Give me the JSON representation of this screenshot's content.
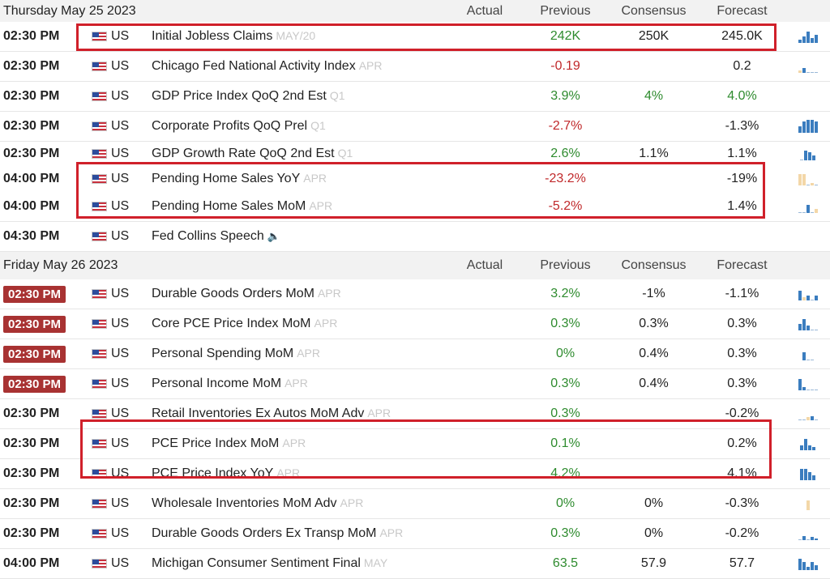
{
  "columns": {
    "actual": "Actual",
    "previous": "Previous",
    "consensus": "Consensus",
    "forecast": "Forecast"
  },
  "colors": {
    "highlight": "#d0202a",
    "positive": "#2e8b2e",
    "negative": "#c0282a",
    "badge": "#a83232",
    "spark": "#3b7dbf"
  },
  "days": [
    {
      "label": "Thursday May 25 2023",
      "events": [
        {
          "time": "02:30 PM",
          "country": "US",
          "event": "Initial Jobless Claims",
          "ref": "MAY/20",
          "actual": "",
          "previous": "242K",
          "prev_tone": "pos",
          "consensus": "250K",
          "forecast": "245.0K",
          "fore_tone": "neu"
        },
        {
          "time": "02:30 PM",
          "country": "US",
          "event": "Chicago Fed National Activity Index",
          "ref": "APR",
          "actual": "",
          "previous": "-0.19",
          "prev_tone": "neg",
          "consensus": "",
          "forecast": "0.2",
          "fore_tone": "neu"
        },
        {
          "time": "02:30 PM",
          "country": "US",
          "event": "GDP Price Index QoQ 2nd Est",
          "ref": "Q1",
          "actual": "",
          "previous": "3.9%",
          "prev_tone": "pos",
          "consensus": "4%",
          "cons_tone": "pos",
          "forecast": "4.0%",
          "fore_tone": "pos"
        },
        {
          "time": "02:30 PM",
          "country": "US",
          "event": "Corporate Profits QoQ Prel",
          "ref": "Q1",
          "actual": "",
          "previous": "-2.7%",
          "prev_tone": "neg",
          "consensus": "",
          "forecast": "-1.3%",
          "fore_tone": "neu"
        },
        {
          "time": "02:30 PM",
          "country": "US",
          "event": "GDP Growth Rate QoQ 2nd Est",
          "ref": "Q1",
          "actual": "",
          "previous": "2.6%",
          "prev_tone": "pos",
          "consensus": "1.1%",
          "forecast": "1.1%",
          "fore_tone": "neu"
        },
        {
          "time": "04:00 PM",
          "country": "US",
          "event": "Pending Home Sales YoY",
          "ref": "APR",
          "actual": "",
          "previous": "-23.2%",
          "prev_tone": "neg",
          "consensus": "",
          "forecast": "-19%",
          "fore_tone": "neu"
        },
        {
          "time": "04:00 PM",
          "country": "US",
          "event": "Pending Home Sales MoM",
          "ref": "APR",
          "actual": "",
          "previous": "-5.2%",
          "prev_tone": "neg",
          "consensus": "",
          "forecast": "1.4%",
          "fore_tone": "neu"
        },
        {
          "time": "04:30 PM",
          "country": "US",
          "event": "Fed Collins Speech",
          "ref": "",
          "speech": true,
          "actual": "",
          "previous": "",
          "consensus": "",
          "forecast": ""
        }
      ]
    },
    {
      "label": "Friday May 26 2023",
      "events": [
        {
          "time": "02:30 PM",
          "badge": true,
          "country": "US",
          "event": "Durable Goods Orders MoM",
          "ref": "APR",
          "actual": "",
          "previous": "3.2%",
          "prev_tone": "pos",
          "consensus": "-1%",
          "forecast": "-1.1%",
          "fore_tone": "neu"
        },
        {
          "time": "02:30 PM",
          "badge": true,
          "country": "US",
          "event": "Core PCE Price Index MoM",
          "ref": "APR",
          "actual": "",
          "previous": "0.3%",
          "prev_tone": "pos",
          "consensus": "0.3%",
          "forecast": "0.3%",
          "fore_tone": "neu"
        },
        {
          "time": "02:30 PM",
          "badge": true,
          "country": "US",
          "event": "Personal Spending MoM",
          "ref": "APR",
          "actual": "",
          "previous": "0%",
          "prev_tone": "pos",
          "consensus": "0.4%",
          "forecast": "0.3%",
          "fore_tone": "neu"
        },
        {
          "time": "02:30 PM",
          "badge": true,
          "country": "US",
          "event": "Personal Income MoM",
          "ref": "APR",
          "actual": "",
          "previous": "0.3%",
          "prev_tone": "pos",
          "consensus": "0.4%",
          "forecast": "0.3%",
          "fore_tone": "neu"
        },
        {
          "time": "02:30 PM",
          "country": "US",
          "event": "Retail Inventories Ex Autos MoM Adv",
          "ref": "APR",
          "actual": "",
          "previous": "0.3%",
          "prev_tone": "pos",
          "consensus": "",
          "forecast": "-0.2%",
          "fore_tone": "neu"
        },
        {
          "time": "02:30 PM",
          "country": "US",
          "event": "PCE Price Index MoM",
          "ref": "APR",
          "actual": "",
          "previous": "0.1%",
          "prev_tone": "pos",
          "consensus": "",
          "forecast": "0.2%",
          "fore_tone": "neu"
        },
        {
          "time": "02:30 PM",
          "country": "US",
          "event": "PCE Price Index YoY",
          "ref": "APR",
          "actual": "",
          "previous": "4.2%",
          "prev_tone": "pos",
          "consensus": "",
          "forecast": "4.1%",
          "fore_tone": "neu"
        },
        {
          "time": "02:30 PM",
          "country": "US",
          "event": "Wholesale Inventories MoM Adv",
          "ref": "APR",
          "actual": "",
          "previous": "0%",
          "prev_tone": "pos",
          "consensus": "0%",
          "forecast": "-0.3%",
          "fore_tone": "neu"
        },
        {
          "time": "02:30 PM",
          "country": "US",
          "event": "Durable Goods Orders Ex Transp MoM",
          "ref": "APR",
          "actual": "",
          "previous": "0.3%",
          "prev_tone": "pos",
          "consensus": "0%",
          "forecast": "-0.2%",
          "fore_tone": "neu"
        },
        {
          "time": "04:00 PM",
          "country": "US",
          "event": "Michigan Consumer Sentiment Final",
          "ref": "MAY",
          "actual": "",
          "previous": "63.5",
          "prev_tone": "pos",
          "consensus": "57.9",
          "forecast": "57.7",
          "fore_tone": "neu"
        }
      ]
    }
  ]
}
